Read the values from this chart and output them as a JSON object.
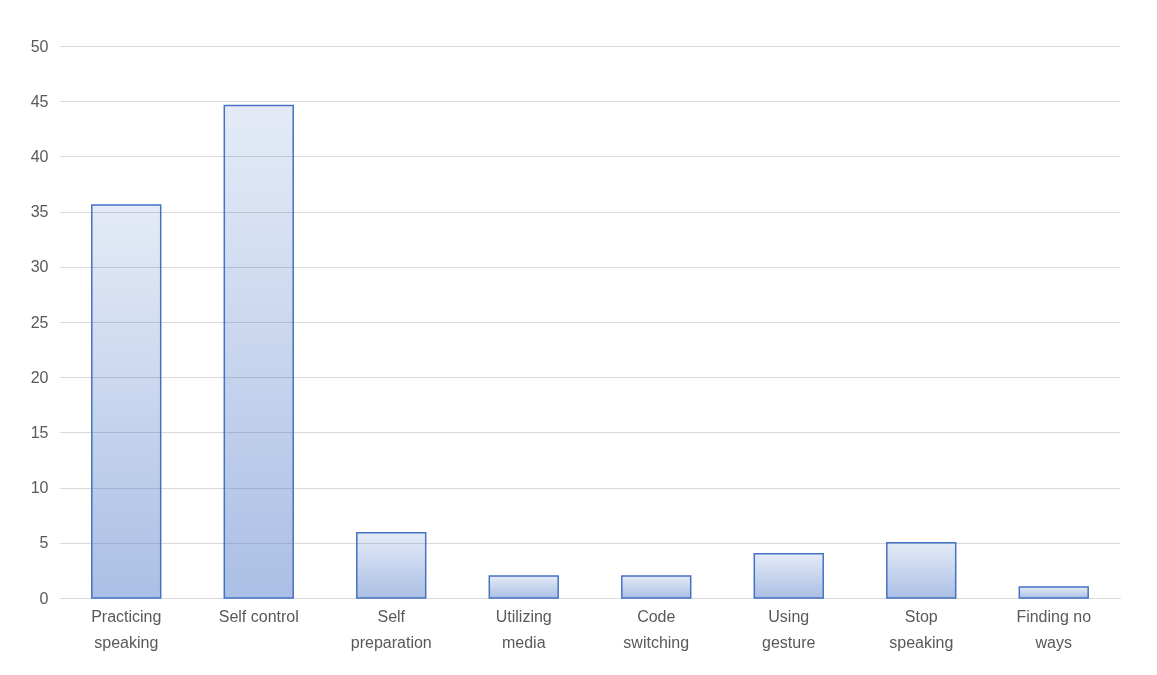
{
  "chart_data": {
    "type": "bar",
    "categories": [
      "Practicing speaking",
      "Self control",
      "Self preparation",
      "Utilizing media",
      "Code switching",
      "Using gesture",
      "Stop speaking",
      "Finding no ways"
    ],
    "values": [
      35.6,
      44.6,
      5.9,
      2,
      2,
      4,
      5,
      1
    ],
    "color": "#4472c4",
    "ylim": [
      0,
      50
    ],
    "yticks": [
      0,
      5,
      10,
      15,
      20,
      25,
      30,
      35,
      40,
      45,
      50
    ],
    "grid": "y"
  }
}
